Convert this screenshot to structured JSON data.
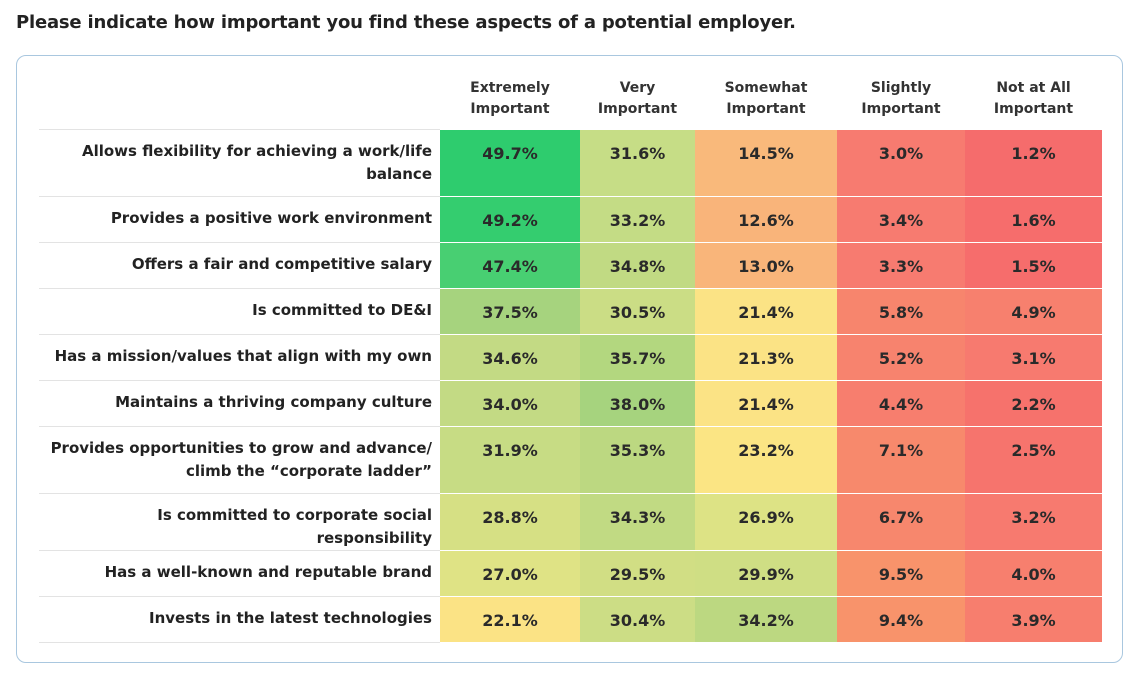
{
  "question": "Please indicate how important you find these aspects of a potential employer.",
  "columns": [
    [
      "Extremely",
      "Important"
    ],
    [
      "Very",
      "Important"
    ],
    [
      "Somewhat",
      "Important"
    ],
    [
      "Slightly",
      "Important"
    ],
    [
      "Not at All",
      "Important"
    ]
  ],
  "chart_data": {
    "type": "table",
    "columns": [
      "Extremely Important",
      "Very Important",
      "Somewhat Important",
      "Slightly Important",
      "Not at All Important"
    ],
    "rows": [
      {
        "label": [
          "Allows flexibility for achieving a work/life",
          "balance"
        ],
        "values": [
          49.7,
          31.6,
          14.5,
          3.0,
          1.2
        ],
        "colors": [
          "#2ecc6e",
          "#c6dd86",
          "#f9b97b",
          "#f77b70",
          "#f56c6c"
        ]
      },
      {
        "label": [
          "Provides a positive work environment"
        ],
        "values": [
          49.2,
          33.2,
          12.6,
          3.4,
          1.6
        ],
        "colors": [
          "#34cd6f",
          "#c4dc85",
          "#f9b47a",
          "#f77b70",
          "#f66d6c"
        ]
      },
      {
        "label": [
          "Offers a fair and competitive salary"
        ],
        "values": [
          47.4,
          34.8,
          13.0,
          3.3,
          1.5
        ],
        "colors": [
          "#48cf72",
          "#c1da83",
          "#f9b57a",
          "#f77b70",
          "#f66d6c"
        ]
      },
      {
        "label": [
          "Is committed to DE&I"
        ],
        "values": [
          37.5,
          30.5,
          21.4,
          5.8,
          4.9
        ],
        "colors": [
          "#a6d37e",
          "#cbdd85",
          "#fbe385",
          "#f7856d",
          "#f7806e"
        ]
      },
      {
        "label": [
          "Has a mission/values that align with my own"
        ],
        "values": [
          34.6,
          35.7,
          21.3,
          5.2,
          3.1
        ],
        "colors": [
          "#c3da84",
          "#b3d77f",
          "#fbe385",
          "#f7836e",
          "#f77a6f"
        ]
      },
      {
        "label": [
          "Maintains a thriving company culture"
        ],
        "values": [
          34.0,
          38.0,
          21.4,
          4.4,
          2.2
        ],
        "colors": [
          "#c3da84",
          "#a6d37e",
          "#fbe385",
          "#f77e6e",
          "#f6726c"
        ]
      },
      {
        "label": [
          "Provides opportunities to grow and advance/",
          "climb the “corporate ladder”"
        ],
        "values": [
          31.9,
          35.3,
          23.2,
          7.1,
          2.5
        ],
        "colors": [
          "#c7dc84",
          "#bcd881",
          "#fbe584",
          "#f7896c",
          "#f6746d"
        ]
      },
      {
        "label": [
          "Is committed to corporate social responsibility"
        ],
        "values": [
          28.8,
          34.3,
          26.9,
          6.7,
          3.2
        ],
        "colors": [
          "#d6e084",
          "#c1da83",
          "#dde385",
          "#f7876d",
          "#f77a6f"
        ]
      },
      {
        "label": [
          "Has a well-known and reputable brand"
        ],
        "values": [
          27.0,
          29.5,
          29.9,
          9.5,
          4.0
        ],
        "colors": [
          "#dfe385",
          "#d1de84",
          "#cfde84",
          "#f8936b",
          "#f77f6e"
        ]
      },
      {
        "label": [
          "Invests in the latest technologies"
        ],
        "values": [
          22.1,
          30.4,
          34.2,
          9.4,
          3.9
        ],
        "colors": [
          "#fbe385",
          "#ccdd85",
          "#bcd881",
          "#f8936b",
          "#f77e6e"
        ]
      }
    ]
  }
}
